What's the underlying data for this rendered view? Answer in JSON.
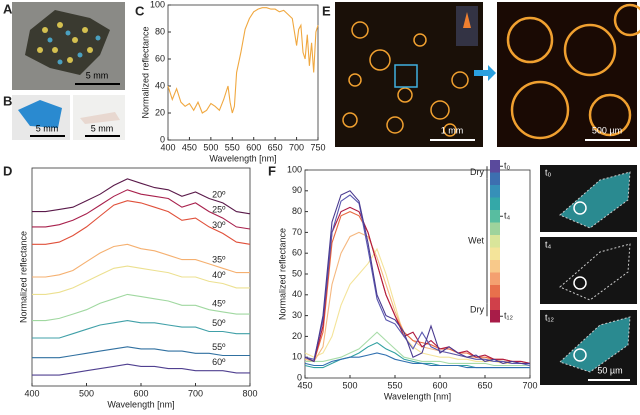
{
  "figure": {
    "panel_labels": [
      "A",
      "B",
      "C",
      "D",
      "E",
      "F"
    ],
    "scale_bars": [
      "5 mm",
      "5 mm",
      "5 mm",
      "1 mm",
      "500 µm",
      "50 µm"
    ],
    "time_labels": [
      "t₀",
      "t₄",
      "t₁₂"
    ]
  },
  "chart_data": [
    {
      "type": "line",
      "x_label": "Wavelength [nm]",
      "y_label": "Normalized reflectance",
      "color": "#f0a840",
      "x": [
        400,
        410,
        420,
        430,
        440,
        450,
        460,
        470,
        480,
        490,
        500,
        510,
        520,
        530,
        540,
        545,
        550,
        555,
        560,
        570,
        580,
        590,
        600,
        610,
        620,
        630,
        640,
        650,
        660,
        670,
        680,
        690,
        700,
        705,
        710,
        715,
        720,
        725,
        730,
        735,
        740,
        745,
        750
      ],
      "values": [
        40,
        30,
        38,
        28,
        25,
        27,
        22,
        28,
        20,
        22,
        27,
        25,
        22,
        30,
        40,
        28,
        20,
        25,
        50,
        65,
        82,
        90,
        95,
        97,
        98,
        98,
        97,
        97,
        95,
        96,
        93,
        90,
        70,
        82,
        85,
        65,
        60,
        78,
        55,
        72,
        50,
        80,
        85
      ],
      "xlim": [
        400,
        750
      ],
      "xticks": [
        400,
        450,
        500,
        550,
        600,
        650,
        700,
        750
      ],
      "ylim": [
        0,
        100
      ],
      "yticks": [
        0,
        20,
        40,
        60,
        80,
        100
      ]
    },
    {
      "type": "line",
      "x_label": "Wavelength [nm]",
      "y_label": "Normalized reflectance",
      "x": [
        400,
        425,
        450,
        475,
        500,
        525,
        550,
        575,
        600,
        625,
        650,
        675,
        700,
        725,
        750,
        775,
        800
      ],
      "series": [
        {
          "name": "20º",
          "color": "#5a1a4a",
          "values": [
            80,
            80,
            81,
            82,
            85,
            88,
            92,
            95,
            93,
            91,
            90,
            87,
            89,
            86,
            84,
            80,
            79
          ]
        },
        {
          "name": "25º",
          "color": "#a8204c",
          "values": [
            73,
            73,
            74,
            76,
            79,
            83,
            87,
            90,
            88,
            87,
            86,
            82,
            84,
            80,
            77,
            73,
            72
          ]
        },
        {
          "name": "30º",
          "color": "#e0503a",
          "values": [
            65,
            65,
            66,
            69,
            73,
            78,
            83,
            85,
            84,
            82,
            80,
            76,
            77,
            73,
            70,
            66,
            65
          ]
        },
        {
          "name": "35º",
          "color": "#f5b070",
          "values": [
            50,
            50,
            51,
            53,
            57,
            61,
            64,
            65,
            63,
            62,
            60,
            58,
            58,
            56,
            54,
            52,
            52
          ]
        },
        {
          "name": "40º",
          "color": "#ece090",
          "values": [
            42,
            42,
            43,
            45,
            48,
            51,
            54,
            55,
            54,
            53,
            52,
            50,
            50,
            48,
            47,
            45,
            45
          ]
        },
        {
          "name": "45º",
          "color": "#a0d8a0",
          "values": [
            30,
            30,
            31,
            33,
            35,
            38,
            40,
            42,
            41,
            40,
            39,
            37,
            37,
            35,
            34,
            33,
            33
          ]
        },
        {
          "name": "50º",
          "color": "#40a0a8",
          "values": [
            22,
            22,
            22,
            24,
            26,
            28,
            29,
            30,
            29,
            29,
            28,
            27,
            27,
            25,
            25,
            24,
            24
          ]
        },
        {
          "name": "55º",
          "color": "#3070a0",
          "values": [
            13,
            13,
            13,
            14,
            15,
            16,
            17,
            18,
            17,
            17,
            16,
            16,
            15,
            15,
            14,
            14,
            14
          ]
        },
        {
          "name": "60º",
          "color": "#504090",
          "values": [
            5,
            5,
            5,
            6,
            7,
            8,
            9,
            10,
            9,
            9,
            8,
            8,
            7,
            7,
            7,
            6,
            6
          ]
        }
      ],
      "xlim": [
        400,
        800
      ],
      "xticks": [
        400,
        500,
        600,
        700,
        800
      ],
      "ylim": [
        0,
        100
      ]
    },
    {
      "type": "line",
      "x_label": "Wavelength [nm]",
      "y_label": "Normalized reflectance",
      "x": [
        450,
        460,
        470,
        480,
        490,
        500,
        510,
        520,
        530,
        540,
        550,
        560,
        570,
        580,
        590,
        600,
        610,
        620,
        630,
        640,
        650,
        660,
        670,
        680,
        690,
        700
      ],
      "series": [
        {
          "color": "#f4e49a",
          "values": [
            12,
            10,
            12,
            20,
            35,
            45,
            50,
            55,
            62,
            50,
            35,
            20,
            15,
            12,
            11,
            10,
            10,
            9,
            9,
            8,
            8,
            8,
            7,
            7,
            7,
            7
          ]
        },
        {
          "color": "#a8dca8",
          "values": [
            8,
            8,
            8,
            9,
            10,
            12,
            14,
            18,
            22,
            18,
            14,
            10,
            9,
            8,
            8,
            8,
            7,
            7,
            7,
            7,
            7,
            6,
            6,
            6,
            6,
            6
          ]
        },
        {
          "color": "#30a0a0",
          "values": [
            6,
            5,
            5,
            7,
            9,
            10,
            12,
            15,
            17,
            14,
            12,
            9,
            8,
            7,
            7,
            6,
            6,
            6,
            6,
            5,
            5,
            5,
            5,
            5,
            5,
            5
          ]
        },
        {
          "color": "#3070b0",
          "values": [
            7,
            6,
            6,
            8,
            9,
            10,
            10,
            11,
            12,
            11,
            9,
            8,
            7,
            7,
            6,
            6,
            6,
            6,
            5,
            5,
            5,
            5,
            5,
            5,
            5,
            5
          ]
        },
        {
          "color": "#f5b880",
          "values": [
            9,
            8,
            15,
            45,
            60,
            68,
            70,
            68,
            58,
            45,
            32,
            22,
            18,
            15,
            14,
            13,
            12,
            11,
            10,
            10,
            9,
            9,
            8,
            8,
            7,
            7
          ]
        },
        {
          "color": "#e86a40",
          "values": [
            10,
            8,
            22,
            65,
            78,
            80,
            78,
            70,
            55,
            40,
            30,
            22,
            18,
            17,
            16,
            14,
            14,
            12,
            12,
            10,
            10,
            9,
            9,
            8,
            8,
            7
          ]
        },
        {
          "color": "#b01a40",
          "values": [
            10,
            8,
            25,
            70,
            80,
            82,
            80,
            70,
            55,
            40,
            30,
            20,
            22,
            15,
            18,
            14,
            15,
            12,
            13,
            10,
            11,
            9,
            9,
            8,
            8,
            7
          ]
        },
        {
          "color": "#5a58b0",
          "values": [
            10,
            9,
            28,
            70,
            85,
            88,
            84,
            62,
            38,
            28,
            26,
            20,
            14,
            22,
            15,
            13,
            12,
            11,
            10,
            9,
            9,
            8,
            8,
            7,
            7,
            6
          ]
        },
        {
          "color": "#4a3a90",
          "values": [
            10,
            8,
            30,
            75,
            88,
            90,
            85,
            65,
            40,
            30,
            28,
            22,
            10,
            12,
            25,
            12,
            15,
            12,
            10,
            11,
            8,
            9,
            7,
            8,
            7,
            7
          ]
        }
      ],
      "xlim": [
        450,
        700
      ],
      "xticks": [
        450,
        500,
        550,
        600,
        650,
        700
      ],
      "ylim": [
        0,
        100
      ],
      "yticks": [
        0,
        10,
        20,
        30,
        40,
        50,
        60,
        70,
        80,
        90,
        100
      ],
      "colorbar": {
        "colors": [
          "#5a4a9c",
          "#3d6fb0",
          "#3690b8",
          "#34a8a8",
          "#58bda0",
          "#9ed39c",
          "#d9e59a",
          "#f4e49a",
          "#f8c98a",
          "#f4a070",
          "#e8704c",
          "#d0404a",
          "#a81c48"
        ],
        "ticks": [
          {
            "value": 0,
            "label": "t₀"
          },
          {
            "value": 4,
            "label": "t₄"
          },
          {
            "value": 12,
            "label": "t₁₂"
          }
        ],
        "phases": [
          {
            "label": "Dry",
            "from": 0,
            "to": 1
          },
          {
            "label": "Wet",
            "from": 1,
            "to": 11
          },
          {
            "label": "Dry",
            "from": 11,
            "to": 12
          }
        ]
      }
    }
  ]
}
